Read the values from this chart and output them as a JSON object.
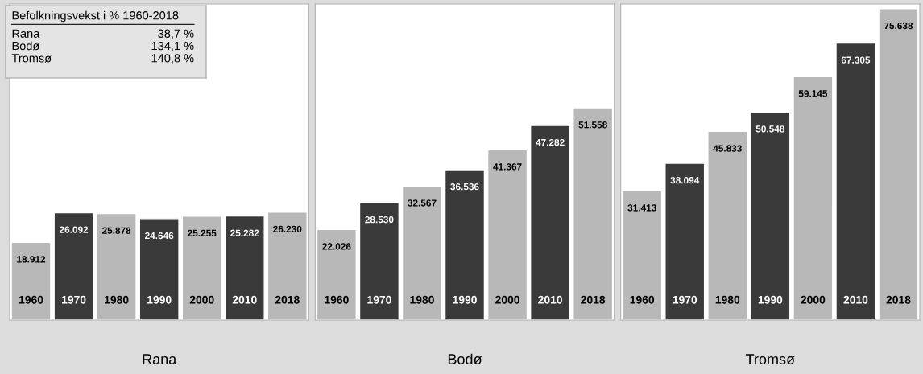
{
  "chart_data": [
    {
      "type": "other",
      "title": "Befolkningsvekst i % 1960-2018",
      "annotations": [
        "Rana",
        "38,7 %",
        "Bodø",
        "134,1 %",
        "Tromsø",
        "140,8 %"
      ]
    },
    {
      "type": "bar",
      "xlabel": "Rana",
      "categories": [
        "1960",
        "1970",
        "1980",
        "1990",
        "2000",
        "2010",
        "2018"
      ],
      "values": [
        18912,
        26092,
        25878,
        24646,
        25255,
        25282,
        26230
      ],
      "value_labels": [
        "18.912",
        "26.092",
        "25.878",
        "24.646",
        "25.255",
        "25.282",
        "26.230"
      ],
      "colors": [
        "#b8b8b8",
        "#3a3a3a",
        "#b8b8b8",
        "#3a3a3a",
        "#b8b8b8",
        "#3a3a3a",
        "#b8b8b8"
      ]
    },
    {
      "type": "bar",
      "xlabel": "Bodø",
      "categories": [
        "1960",
        "1970",
        "1980",
        "1990",
        "2000",
        "2010",
        "2018"
      ],
      "values": [
        22026,
        28530,
        32567,
        36536,
        41367,
        47282,
        51558
      ],
      "value_labels": [
        "22.026",
        "28.530",
        "32.567",
        "36.536",
        "41.367",
        "47.282",
        "51.558"
      ],
      "colors": [
        "#b8b8b8",
        "#3a3a3a",
        "#b8b8b8",
        "#3a3a3a",
        "#b8b8b8",
        "#3a3a3a",
        "#b8b8b8"
      ]
    },
    {
      "type": "bar",
      "xlabel": "Tromsø",
      "categories": [
        "1960",
        "1970",
        "1980",
        "1990",
        "2000",
        "2010",
        "2018"
      ],
      "values": [
        31413,
        38094,
        45833,
        50548,
        59145,
        67305,
        75638
      ],
      "value_labels": [
        "31.413",
        "38.094",
        "45.833",
        "50.548",
        "59.145",
        "67.305",
        "75.638"
      ],
      "colors": [
        "#b8b8b8",
        "#3a3a3a",
        "#b8b8b8",
        "#3a3a3a",
        "#b8b8b8",
        "#3a3a3a",
        "#b8b8b8"
      ]
    }
  ]
}
